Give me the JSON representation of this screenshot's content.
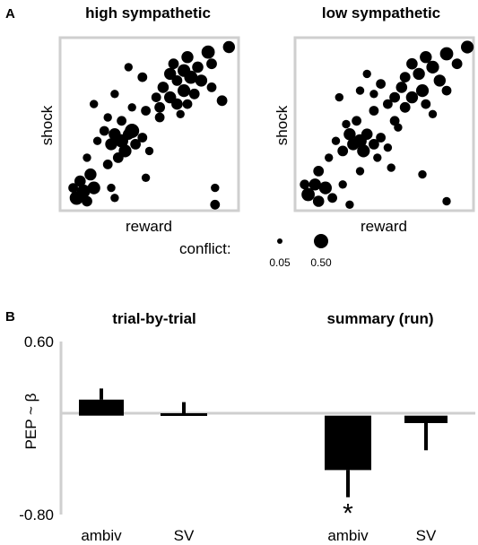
{
  "figure": {
    "panel_a_label": "A",
    "panel_b_label": "B"
  },
  "chart_data": [
    {
      "type": "scatter",
      "title": "high sympathetic",
      "xlabel": "reward",
      "ylabel": "shock",
      "xlim": [
        0,
        1
      ],
      "ylim": [
        0,
        1
      ],
      "points": [
        {
          "x": 0.96,
          "y": 0.96,
          "size": 0.3
        },
        {
          "x": 0.84,
          "y": 0.93,
          "size": 0.4
        },
        {
          "x": 0.72,
          "y": 0.9,
          "size": 0.3
        },
        {
          "x": 0.64,
          "y": 0.86,
          "size": 0.2
        },
        {
          "x": 0.7,
          "y": 0.82,
          "size": 0.35
        },
        {
          "x": 0.78,
          "y": 0.84,
          "size": 0.25
        },
        {
          "x": 0.62,
          "y": 0.8,
          "size": 0.3
        },
        {
          "x": 0.74,
          "y": 0.78,
          "size": 0.4
        },
        {
          "x": 0.66,
          "y": 0.76,
          "size": 0.2
        },
        {
          "x": 0.8,
          "y": 0.76,
          "size": 0.3
        },
        {
          "x": 0.58,
          "y": 0.72,
          "size": 0.25
        },
        {
          "x": 0.7,
          "y": 0.7,
          "size": 0.35
        },
        {
          "x": 0.62,
          "y": 0.66,
          "size": 0.3
        },
        {
          "x": 0.76,
          "y": 0.68,
          "size": 0.2
        },
        {
          "x": 0.54,
          "y": 0.66,
          "size": 0.15
        },
        {
          "x": 0.66,
          "y": 0.62,
          "size": 0.25
        },
        {
          "x": 0.56,
          "y": 0.6,
          "size": 0.2
        },
        {
          "x": 0.72,
          "y": 0.62,
          "size": 0.15
        },
        {
          "x": 0.86,
          "y": 0.72,
          "size": 0.15
        },
        {
          "x": 0.92,
          "y": 0.64,
          "size": 0.2
        },
        {
          "x": 0.46,
          "y": 0.78,
          "size": 0.15
        },
        {
          "x": 0.38,
          "y": 0.84,
          "size": 0.1
        },
        {
          "x": 0.3,
          "y": 0.68,
          "size": 0.1
        },
        {
          "x": 0.48,
          "y": 0.58,
          "size": 0.15
        },
        {
          "x": 0.4,
          "y": 0.6,
          "size": 0.1
        },
        {
          "x": 0.56,
          "y": 0.54,
          "size": 0.15
        },
        {
          "x": 0.68,
          "y": 0.56,
          "size": 0.1
        },
        {
          "x": 0.26,
          "y": 0.54,
          "size": 0.1
        },
        {
          "x": 0.34,
          "y": 0.52,
          "size": 0.15
        },
        {
          "x": 0.24,
          "y": 0.46,
          "size": 0.15
        },
        {
          "x": 0.3,
          "y": 0.44,
          "size": 0.3
        },
        {
          "x": 0.34,
          "y": 0.4,
          "size": 0.4
        },
        {
          "x": 0.38,
          "y": 0.44,
          "size": 0.25
        },
        {
          "x": 0.28,
          "y": 0.38,
          "size": 0.3
        },
        {
          "x": 0.36,
          "y": 0.34,
          "size": 0.35
        },
        {
          "x": 0.32,
          "y": 0.3,
          "size": 0.2
        },
        {
          "x": 0.42,
          "y": 0.38,
          "size": 0.2
        },
        {
          "x": 0.46,
          "y": 0.42,
          "size": 0.15
        },
        {
          "x": 0.4,
          "y": 0.46,
          "size": 0.5
        },
        {
          "x": 0.2,
          "y": 0.4,
          "size": 0.1
        },
        {
          "x": 0.5,
          "y": 0.34,
          "size": 0.1
        },
        {
          "x": 0.26,
          "y": 0.26,
          "size": 0.15
        },
        {
          "x": 0.14,
          "y": 0.3,
          "size": 0.1
        },
        {
          "x": 0.16,
          "y": 0.2,
          "size": 0.3
        },
        {
          "x": 0.1,
          "y": 0.16,
          "size": 0.25
        },
        {
          "x": 0.18,
          "y": 0.12,
          "size": 0.35
        },
        {
          "x": 0.12,
          "y": 0.1,
          "size": 0.4
        },
        {
          "x": 0.08,
          "y": 0.06,
          "size": 0.45
        },
        {
          "x": 0.14,
          "y": 0.04,
          "size": 0.2
        },
        {
          "x": 0.06,
          "y": 0.12,
          "size": 0.15
        },
        {
          "x": 0.28,
          "y": 0.12,
          "size": 0.1
        },
        {
          "x": 0.3,
          "y": 0.06,
          "size": 0.1
        },
        {
          "x": 0.48,
          "y": 0.18,
          "size": 0.1
        },
        {
          "x": 0.88,
          "y": 0.12,
          "size": 0.1
        },
        {
          "x": 0.88,
          "y": 0.02,
          "size": 0.15
        },
        {
          "x": 0.18,
          "y": 0.62,
          "size": 0.1
        },
        {
          "x": 0.86,
          "y": 0.86,
          "size": 0.2
        }
      ]
    },
    {
      "type": "scatter",
      "title": "low sympathetic",
      "xlabel": "reward",
      "ylabel": "shock",
      "xlim": [
        0,
        1
      ],
      "ylim": [
        0,
        1
      ],
      "points": [
        {
          "x": 0.98,
          "y": 0.96,
          "size": 0.35
        },
        {
          "x": 0.86,
          "y": 0.92,
          "size": 0.4
        },
        {
          "x": 0.74,
          "y": 0.9,
          "size": 0.3
        },
        {
          "x": 0.66,
          "y": 0.86,
          "size": 0.25
        },
        {
          "x": 0.78,
          "y": 0.84,
          "size": 0.35
        },
        {
          "x": 0.7,
          "y": 0.8,
          "size": 0.3
        },
        {
          "x": 0.62,
          "y": 0.78,
          "size": 0.2
        },
        {
          "x": 0.82,
          "y": 0.76,
          "size": 0.3
        },
        {
          "x": 0.6,
          "y": 0.72,
          "size": 0.25
        },
        {
          "x": 0.72,
          "y": 0.7,
          "size": 0.35
        },
        {
          "x": 0.66,
          "y": 0.66,
          "size": 0.3
        },
        {
          "x": 0.56,
          "y": 0.66,
          "size": 0.2
        },
        {
          "x": 0.74,
          "y": 0.62,
          "size": 0.15
        },
        {
          "x": 0.62,
          "y": 0.6,
          "size": 0.2
        },
        {
          "x": 0.52,
          "y": 0.62,
          "size": 0.15
        },
        {
          "x": 0.86,
          "y": 0.7,
          "size": 0.15
        },
        {
          "x": 0.92,
          "y": 0.86,
          "size": 0.2
        },
        {
          "x": 0.48,
          "y": 0.74,
          "size": 0.15
        },
        {
          "x": 0.4,
          "y": 0.8,
          "size": 0.1
        },
        {
          "x": 0.44,
          "y": 0.58,
          "size": 0.15
        },
        {
          "x": 0.56,
          "y": 0.52,
          "size": 0.15
        },
        {
          "x": 0.28,
          "y": 0.5,
          "size": 0.1
        },
        {
          "x": 0.34,
          "y": 0.52,
          "size": 0.15
        },
        {
          "x": 0.3,
          "y": 0.44,
          "size": 0.3
        },
        {
          "x": 0.36,
          "y": 0.4,
          "size": 0.4
        },
        {
          "x": 0.4,
          "y": 0.44,
          "size": 0.25
        },
        {
          "x": 0.32,
          "y": 0.38,
          "size": 0.3
        },
        {
          "x": 0.38,
          "y": 0.34,
          "size": 0.35
        },
        {
          "x": 0.44,
          "y": 0.38,
          "size": 0.2
        },
        {
          "x": 0.48,
          "y": 0.42,
          "size": 0.15
        },
        {
          "x": 0.26,
          "y": 0.34,
          "size": 0.2
        },
        {
          "x": 0.52,
          "y": 0.36,
          "size": 0.1
        },
        {
          "x": 0.22,
          "y": 0.4,
          "size": 0.1
        },
        {
          "x": 0.18,
          "y": 0.3,
          "size": 0.1
        },
        {
          "x": 0.12,
          "y": 0.22,
          "size": 0.2
        },
        {
          "x": 0.1,
          "y": 0.14,
          "size": 0.3
        },
        {
          "x": 0.16,
          "y": 0.12,
          "size": 0.35
        },
        {
          "x": 0.06,
          "y": 0.08,
          "size": 0.4
        },
        {
          "x": 0.12,
          "y": 0.04,
          "size": 0.25
        },
        {
          "x": 0.04,
          "y": 0.14,
          "size": 0.15
        },
        {
          "x": 0.2,
          "y": 0.06,
          "size": 0.15
        },
        {
          "x": 0.26,
          "y": 0.14,
          "size": 0.1
        },
        {
          "x": 0.36,
          "y": 0.22,
          "size": 0.1
        },
        {
          "x": 0.54,
          "y": 0.24,
          "size": 0.1
        },
        {
          "x": 0.72,
          "y": 0.2,
          "size": 0.1
        },
        {
          "x": 0.86,
          "y": 0.04,
          "size": 0.1
        },
        {
          "x": 0.3,
          "y": 0.02,
          "size": 0.1
        },
        {
          "x": 0.46,
          "y": 0.3,
          "size": 0.1
        },
        {
          "x": 0.24,
          "y": 0.66,
          "size": 0.1
        },
        {
          "x": 0.36,
          "y": 0.7,
          "size": 0.1
        },
        {
          "x": 0.44,
          "y": 0.68,
          "size": 0.1
        },
        {
          "x": 0.58,
          "y": 0.48,
          "size": 0.1
        },
        {
          "x": 0.78,
          "y": 0.56,
          "size": 0.1
        }
      ]
    },
    {
      "type": "bar",
      "ylabel": "PEP ~ β",
      "ylim": [
        -0.8,
        0.6
      ],
      "ytick_labels": [
        "0.60",
        "-0.80"
      ],
      "groups": [
        {
          "title": "trial-by-trial",
          "categories": [
            "ambiv",
            "SV"
          ],
          "values": [
            0.13,
            0.02
          ],
          "errors": [
            0.09,
            0.09
          ],
          "annotations": [
            "",
            ""
          ]
        },
        {
          "title": "summary (run)",
          "categories": [
            "ambiv",
            "SV"
          ],
          "values": [
            -0.44,
            -0.06
          ],
          "errors": [
            0.22,
            0.22
          ],
          "annotations": [
            "*",
            ""
          ]
        }
      ]
    }
  ],
  "legend": {
    "title": "conflict:",
    "entries": [
      {
        "label": "0.05",
        "size": 0.05
      },
      {
        "label": "0.50",
        "size": 0.5
      }
    ]
  }
}
